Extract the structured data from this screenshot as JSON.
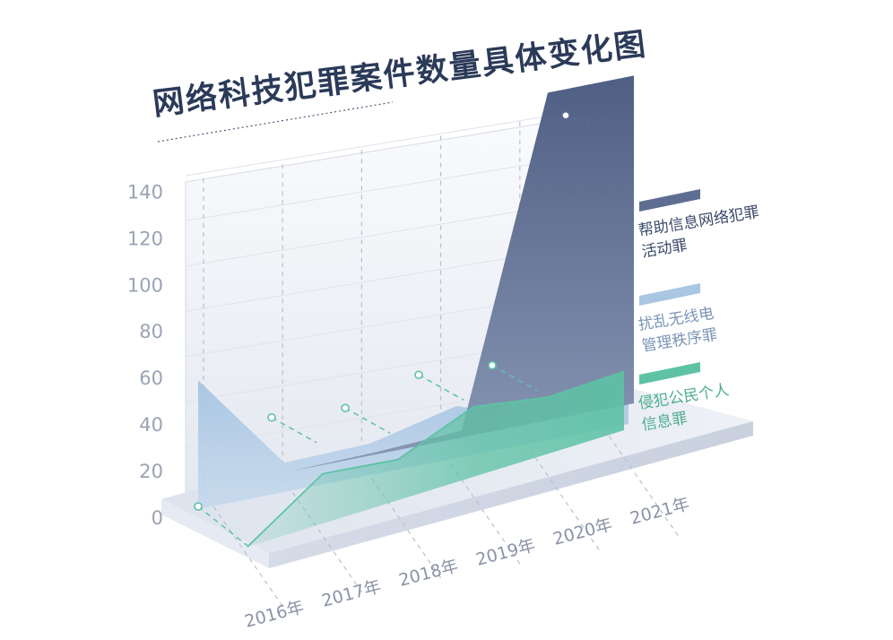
{
  "chart_data": {
    "type": "area",
    "title": "网络科技犯罪案件数量具体变化图",
    "categories": [
      "2016年",
      "2017年",
      "2018年",
      "2019年",
      "2020年",
      "2021年"
    ],
    "y_ticks": [
      "0",
      "20",
      "40",
      "60",
      "80",
      "100",
      "120",
      "140"
    ],
    "ylim": [
      0,
      140
    ],
    "grid": true,
    "legend_position": "right",
    "series": [
      {
        "name": "帮助信息网络犯罪\n活动罪",
        "color": "#5d6e92",
        "values": [
          0,
          0,
          1,
          3,
          145,
          145
        ]
      },
      {
        "name": "扰乱无线电\n管理秩序罪",
        "color": "#a9c6e2",
        "values": [
          57,
          13,
          14,
          23,
          10,
          10
        ]
      },
      {
        "name": "侵犯公民个人\n信息罪",
        "color": "#5ec2a4",
        "values": [
          0,
          22,
          18,
          31,
          25,
          26
        ]
      }
    ],
    "marker_values": [
      0,
      36,
      35,
      45,
      44,
      155
    ]
  }
}
